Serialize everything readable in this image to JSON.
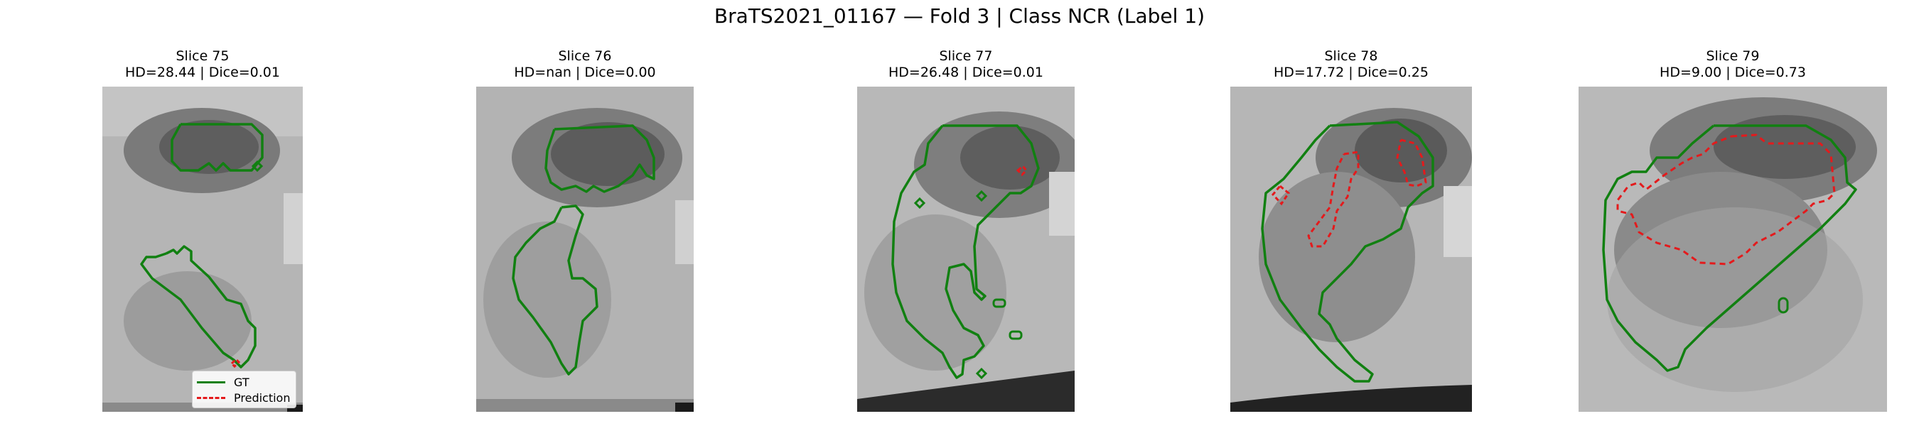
{
  "figure": {
    "title": "BraTS2021_01167 — Fold 3 | Class NCR (Label 1)"
  },
  "colors": {
    "gt": "#118011",
    "prediction": "#e41a1c"
  },
  "legend": {
    "gt_label": "GT",
    "prediction_label": "Prediction",
    "placement": "lower-right of first panel"
  },
  "panels": [
    {
      "slice_label": "Slice 75",
      "metrics_label": "HD=28.44 | Dice=0.01"
    },
    {
      "slice_label": "Slice 76",
      "metrics_label": "HD=nan | Dice=0.00"
    },
    {
      "slice_label": "Slice 77",
      "metrics_label": "HD=26.48 | Dice=0.01"
    },
    {
      "slice_label": "Slice 78",
      "metrics_label": "HD=17.72 | Dice=0.25"
    },
    {
      "slice_label": "Slice 79",
      "metrics_label": "HD=9.00 | Dice=0.73"
    }
  ]
}
